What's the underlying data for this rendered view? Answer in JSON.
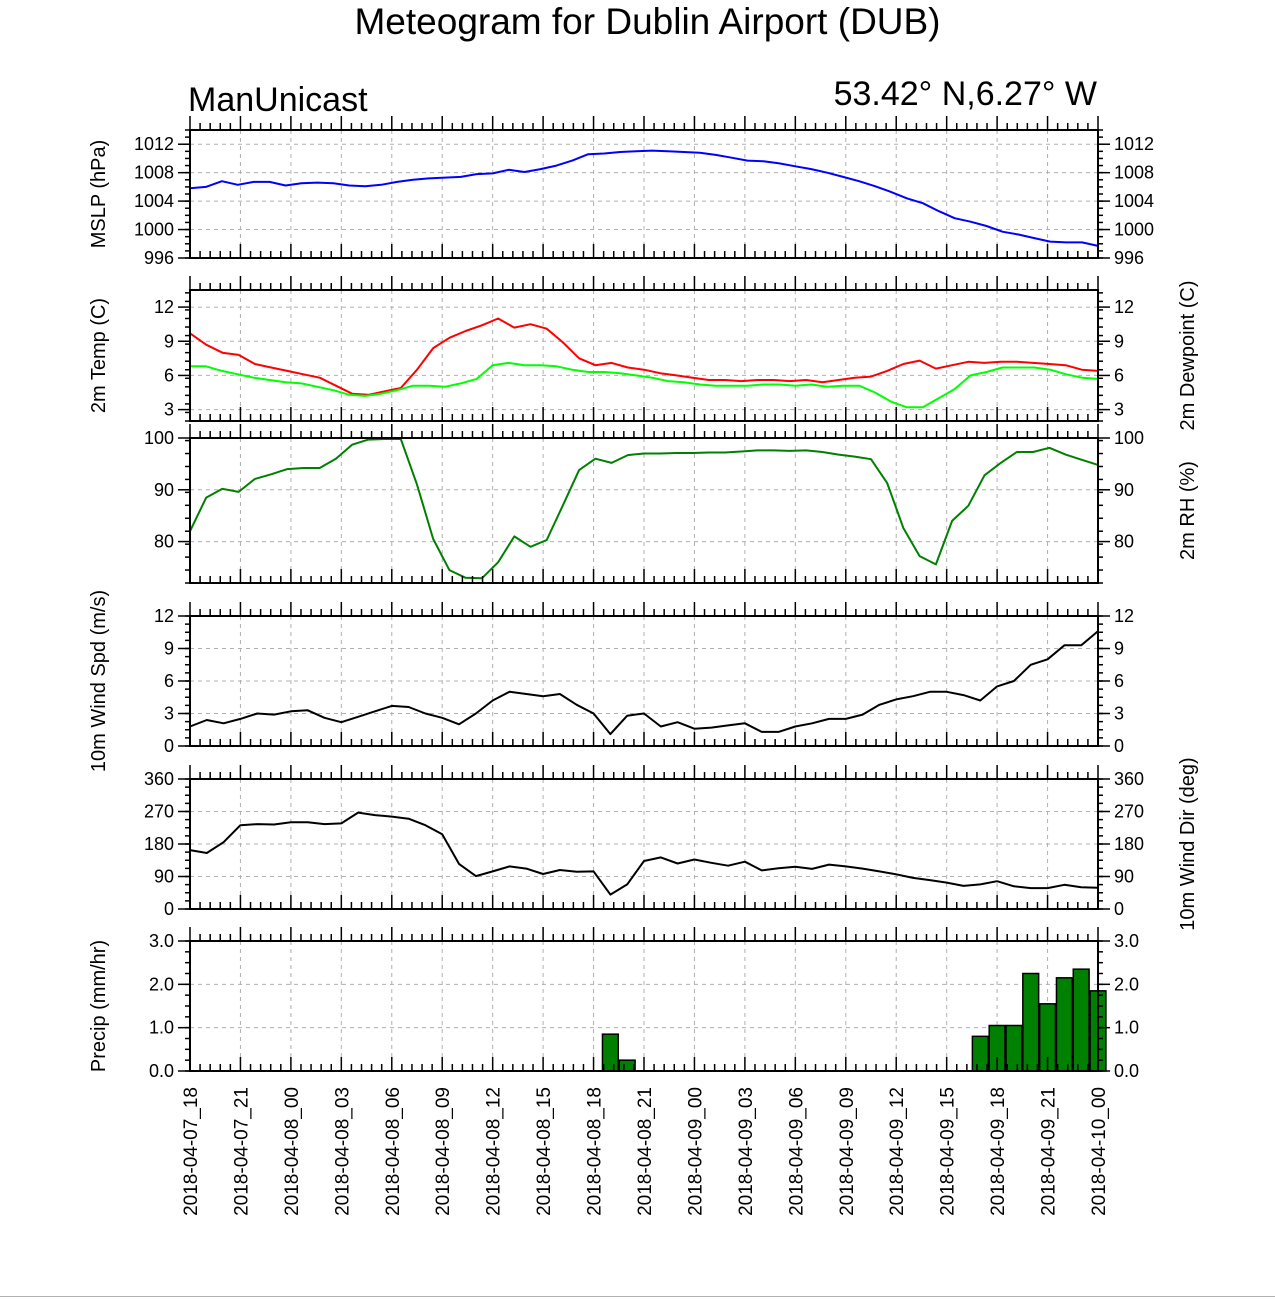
{
  "title": "Meteogram for Dublin Airport (DUB)",
  "model": "ManUnicast",
  "location": "53.42° N,6.27° W",
  "colors": {
    "pressure": "#0000ff",
    "temperature": "#ff0000",
    "dewpoint": "#00ff00",
    "rh": "#008000",
    "wind": "#000000",
    "precip_fill": "#008000",
    "grid": "#b0b0b0"
  },
  "x_tick_labels": [
    "2018-04-07_18",
    "2018-04-07_21",
    "2018-04-08_00",
    "2018-04-08_03",
    "2018-04-08_06",
    "2018-04-08_09",
    "2018-04-08_12",
    "2018-04-08_15",
    "2018-04-08_18",
    "2018-04-08_21",
    "2018-04-09_00",
    "2018-04-09_03",
    "2018-04-09_06",
    "2018-04-09_09",
    "2018-04-09_12",
    "2018-04-09_15",
    "2018-04-09_18",
    "2018-04-09_21",
    "2018-04-10_00"
  ],
  "chart_data": [
    {
      "type": "line",
      "ylabel": "MSLP (hPa)",
      "ylim": [
        996,
        1014
      ],
      "yticks": [
        996,
        1000,
        1004,
        1008,
        1012
      ],
      "grid": true,
      "series": [
        {
          "color": "#0000ff",
          "values": [
            1005.8,
            1006,
            1006.8,
            1006.3,
            1006.7,
            1006.7,
            1006.2,
            1006.5,
            1006.6,
            1006.5,
            1006.2,
            1006.1,
            1006.3,
            1006.7,
            1007.0,
            1007.2,
            1007.3,
            1007.4,
            1007.8,
            1007.9,
            1008.4,
            1008.1,
            1008.5,
            1009.0,
            1009.7,
            1010.6,
            1010.7,
            1010.9,
            1011.0,
            1011.1,
            1011.0,
            1010.9,
            1010.8,
            1010.5,
            1010.1,
            1009.7,
            1009.6,
            1009.3,
            1008.9,
            1008.5,
            1008.0,
            1007.4,
            1006.8,
            1006.1,
            1005.3,
            1004.4,
            1003.7,
            1002.6,
            1001.6,
            1001.1,
            1000.5,
            999.7,
            999.3,
            998.8,
            998.3,
            998.2,
            998.2,
            997.7
          ]
        }
      ]
    },
    {
      "type": "line",
      "ylabel": "2m Temp (C)",
      "ylabel_right": "2m Dewpoint (C)",
      "ylim": [
        2,
        13.5
      ],
      "yticks": [
        3,
        6,
        9,
        12
      ],
      "grid": true,
      "series": [
        {
          "color": "#ff0000",
          "values": [
            9.7,
            8.7,
            8.0,
            7.8,
            7.0,
            6.7,
            6.4,
            6.1,
            5.8,
            5.1,
            4.4,
            4.3,
            4.6,
            4.9,
            6.5,
            8.4,
            9.3,
            9.9,
            10.4,
            11.0,
            10.2,
            10.5,
            10.1,
            8.9,
            7.5,
            6.9,
            7.1,
            6.7,
            6.5,
            6.2,
            6.0,
            5.8,
            5.6,
            5.6,
            5.5,
            5.6,
            5.6,
            5.5,
            5.6,
            5.4,
            5.6,
            5.8,
            5.9,
            6.4,
            7.0,
            7.3,
            6.6,
            6.9,
            7.2,
            7.1,
            7.2,
            7.2,
            7.1,
            7.0,
            6.9,
            6.5,
            6.4
          ]
        },
        {
          "color": "#00ff00",
          "values": [
            6.8,
            6.8,
            6.4,
            6.1,
            5.8,
            5.6,
            5.4,
            5.3,
            5.0,
            4.7,
            4.3,
            4.2,
            4.4,
            4.7,
            5.1,
            5.1,
            5.0,
            5.3,
            5.7,
            6.9,
            7.1,
            6.9,
            6.9,
            6.8,
            6.5,
            6.3,
            6.3,
            6.2,
            6.0,
            5.8,
            5.5,
            5.4,
            5.2,
            5.1,
            5.1,
            5.1,
            5.2,
            5.2,
            5.1,
            5.2,
            5.0,
            5.1,
            5.1,
            4.5,
            3.7,
            3.2,
            3.2,
            4.0,
            4.8,
            6.0,
            6.3,
            6.7,
            6.7,
            6.7,
            6.5,
            6.1,
            5.8,
            5.7
          ]
        }
      ]
    },
    {
      "type": "line",
      "ylabel_right": "2m RH (%)",
      "ylim": [
        72,
        100
      ],
      "yticks": [
        80,
        90,
        100
      ],
      "grid": true,
      "series": [
        {
          "color": "#008000",
          "values": [
            82,
            88.5,
            90.2,
            89.6,
            92.1,
            93,
            94,
            94.2,
            94.2,
            96,
            98.7,
            99.7,
            99.8,
            99.8,
            91,
            80.5,
            74.5,
            73,
            72.9,
            76,
            81,
            79,
            80.3,
            87,
            93.8,
            96,
            95.2,
            96.7,
            97,
            97,
            97.1,
            97.1,
            97.2,
            97.2,
            97.4,
            97.6,
            97.6,
            97.5,
            97.6,
            97.3,
            96.8,
            96.4,
            95.9,
            91.3,
            82.6,
            77.2,
            75.6,
            84,
            86.9,
            92.8,
            95.2,
            97.3,
            97.3,
            98.1,
            96.8,
            95.8,
            94.8
          ]
        }
      ]
    },
    {
      "type": "line",
      "ylabel": "10m Wind Spd (m/s)",
      "ylim": [
        0,
        12
      ],
      "yticks": [
        0,
        3,
        6,
        9,
        12
      ],
      "grid": true,
      "series": [
        {
          "color": "#000000",
          "values": [
            1.8,
            2.4,
            2.1,
            2.5,
            3.0,
            2.9,
            3.2,
            3.3,
            2.6,
            2.2,
            2.7,
            3.2,
            3.7,
            3.6,
            3.0,
            2.6,
            2.0,
            3.0,
            4.2,
            5.0,
            4.8,
            4.6,
            4.8,
            3.8,
            3.0,
            1.1,
            2.8,
            3.0,
            1.8,
            2.2,
            1.6,
            1.7,
            1.9,
            2.1,
            1.3,
            1.3,
            1.8,
            2.1,
            2.5,
            2.5,
            2.9,
            3.8,
            4.3,
            4.6,
            5.0,
            5.0,
            4.7,
            4.2,
            5.5,
            6.0,
            7.5,
            8.0,
            9.3,
            9.3,
            10.6
          ]
        }
      ]
    },
    {
      "type": "line",
      "ylabel_right": "10m Wind Dir (deg)",
      "ylim": [
        0,
        360
      ],
      "yticks": [
        0,
        90,
        180,
        270,
        360
      ],
      "grid": true,
      "series": [
        {
          "color": "#000000",
          "values": [
            163,
            155,
            185,
            232,
            235,
            234,
            240,
            240,
            235,
            237,
            267,
            260,
            256,
            250,
            232,
            207,
            125,
            91,
            104,
            118,
            112,
            97,
            108,
            103,
            104,
            40,
            68,
            133,
            143,
            126,
            137,
            128,
            120,
            131,
            107,
            113,
            117,
            111,
            123,
            118,
            112,
            104,
            96,
            86,
            80,
            73,
            64,
            68,
            77,
            63,
            58,
            58,
            67,
            60,
            59
          ]
        }
      ]
    },
    {
      "type": "bar",
      "ylabel": "Precip (mm/hr)",
      "ylim": [
        0,
        3
      ],
      "yticks": [
        0,
        1,
        2,
        3
      ],
      "ytick_labels": [
        "0.0",
        "1.0",
        "2.0",
        "3.0"
      ],
      "grid": true,
      "series": [
        {
          "color": "#008000",
          "values": [
            0,
            0,
            0,
            0,
            0,
            0,
            0,
            0,
            0,
            0,
            0,
            0,
            0,
            0,
            0,
            0,
            0,
            0,
            0,
            0,
            0,
            0,
            0,
            0,
            0,
            0.85,
            0.25,
            0,
            0,
            0,
            0,
            0,
            0,
            0,
            0,
            0,
            0,
            0,
            0,
            0,
            0,
            0,
            0,
            0,
            0,
            0,
            0,
            0.8,
            1.05,
            1.05,
            2.25,
            1.55,
            2.15,
            2.35,
            1.85
          ]
        }
      ]
    }
  ]
}
